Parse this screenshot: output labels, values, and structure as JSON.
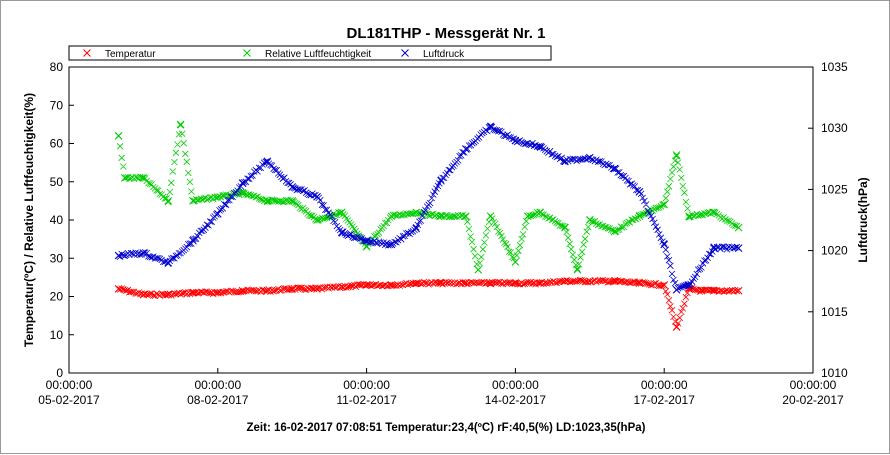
{
  "chart_data": {
    "type": "scatter",
    "title": "DL181THP - Messgerät Nr. 1",
    "ylabel_left": "Temperatur(ºC) / Relative Luftfeuchtigkeit(%)",
    "ylabel_right": "Luftdruck(hPa)",
    "ylim_left": [
      0,
      80
    ],
    "ylim_right": [
      1010,
      1035
    ],
    "yticks_left": [
      "0",
      "10",
      "20",
      "30",
      "40",
      "50",
      "60",
      "70",
      "80"
    ],
    "yticks_right": [
      "1010",
      "1015",
      "1020",
      "1025",
      "1030",
      "1035"
    ],
    "xlim": [
      "05-02-2017 00:00",
      "20-02-2017 00:00"
    ],
    "xticks": [
      {
        "time": "00:00:00",
        "date": "05-02-2017"
      },
      {
        "time": "00:00:00",
        "date": "08-02-2017"
      },
      {
        "time": "00:00:00",
        "date": "11-02-2017"
      },
      {
        "time": "00:00:00",
        "date": "14-02-2017"
      },
      {
        "time": "00:00:00",
        "date": "17-02-2017"
      },
      {
        "time": "00:00:00",
        "date": "20-02-2017"
      }
    ],
    "legend_position": "top",
    "grid": false,
    "series": [
      {
        "name": "Temperatur",
        "axis": "left",
        "color": "#ff0000",
        "x": [
          "06-02-2017 00:00",
          "06-02-2017 12:00",
          "07-02-2017 00:00",
          "07-02-2017 12:00",
          "08-02-2017 00:00",
          "08-02-2017 12:00",
          "09-02-2017 00:00",
          "09-02-2017 12:00",
          "10-02-2017 00:00",
          "10-02-2017 12:00",
          "11-02-2017 00:00",
          "11-02-2017 12:00",
          "12-02-2017 00:00",
          "12-02-2017 12:00",
          "13-02-2017 00:00",
          "13-02-2017 12:00",
          "14-02-2017 00:00",
          "14-02-2017 12:00",
          "15-02-2017 00:00",
          "15-02-2017 12:00",
          "16-02-2017 00:00",
          "16-02-2017 12:00",
          "17-02-2017 00:00",
          "17-02-2017 06:00",
          "17-02-2017 12:00",
          "17-02-2017 18:00",
          "18-02-2017 00:00",
          "18-02-2017 12:00"
        ],
        "y": [
          22,
          20.5,
          20.5,
          21,
          21,
          21.5,
          21.5,
          22,
          22,
          22.5,
          23,
          23,
          23.5,
          23.5,
          23.5,
          23.5,
          23.5,
          23.5,
          24,
          24,
          24,
          23.5,
          23,
          12,
          22,
          21.5,
          21.5,
          21.5
        ]
      },
      {
        "name": "Relative Luftfeuchtigkeit",
        "axis": "left",
        "color": "#00cc00",
        "x": [
          "06-02-2017 00:00",
          "06-02-2017 03:00",
          "06-02-2017 12:00",
          "07-02-2017 00:00",
          "07-02-2017 06:00",
          "07-02-2017 12:00",
          "08-02-2017 00:00",
          "08-02-2017 12:00",
          "09-02-2017 00:00",
          "09-02-2017 12:00",
          "10-02-2017 00:00",
          "10-02-2017 12:00",
          "11-02-2017 00:00",
          "11-02-2017 12:00",
          "12-02-2017 00:00",
          "12-02-2017 12:00",
          "13-02-2017 00:00",
          "13-02-2017 06:00",
          "13-02-2017 12:00",
          "14-02-2017 00:00",
          "14-02-2017 06:00",
          "14-02-2017 12:00",
          "15-02-2017 00:00",
          "15-02-2017 06:00",
          "15-02-2017 12:00",
          "16-02-2017 00:00",
          "16-02-2017 12:00",
          "17-02-2017 00:00",
          "17-02-2017 06:00",
          "17-02-2017 12:00",
          "18-02-2017 00:00",
          "18-02-2017 12:00"
        ],
        "y": [
          62,
          51,
          51,
          45,
          65,
          45,
          46,
          47,
          45,
          45,
          40,
          42,
          33,
          41,
          42,
          41,
          41,
          27,
          41,
          29,
          41,
          42,
          38,
          27,
          40,
          37,
          41,
          44,
          57,
          41,
          42,
          38
        ]
      },
      {
        "name": "Luftdruck",
        "axis": "right",
        "color": "#0000cc",
        "x": [
          "06-02-2017 00:00",
          "06-02-2017 12:00",
          "07-02-2017 00:00",
          "07-02-2017 12:00",
          "08-02-2017 00:00",
          "08-02-2017 12:00",
          "09-02-2017 00:00",
          "09-02-2017 12:00",
          "10-02-2017 00:00",
          "10-02-2017 12:00",
          "11-02-2017 00:00",
          "11-02-2017 12:00",
          "12-02-2017 00:00",
          "12-02-2017 12:00",
          "13-02-2017 00:00",
          "13-02-2017 12:00",
          "14-02-2017 00:00",
          "14-02-2017 12:00",
          "15-02-2017 00:00",
          "15-02-2017 12:00",
          "16-02-2017 00:00",
          "16-02-2017 12:00",
          "17-02-2017 00:00",
          "17-02-2017 06:00",
          "17-02-2017 12:00",
          "18-02-2017 00:00",
          "18-02-2017 12:00"
        ],
        "y": [
          1019.6,
          1019.8,
          1019,
          1020.8,
          1023,
          1025.5,
          1027.3,
          1025.2,
          1024.4,
          1021.5,
          1020.8,
          1020.5,
          1021.8,
          1025.7,
          1028.3,
          1030.1,
          1029,
          1028.5,
          1027.3,
          1027.6,
          1026.7,
          1024.8,
          1020.5,
          1016.8,
          1017.2,
          1020.2,
          1020.2
        ]
      }
    ],
    "status_line": "Zeit: 16-02-2017 07:08:51 Temperatur:23,4(ºC) rF:40,5(%) LD:1023,35(hPa)"
  }
}
